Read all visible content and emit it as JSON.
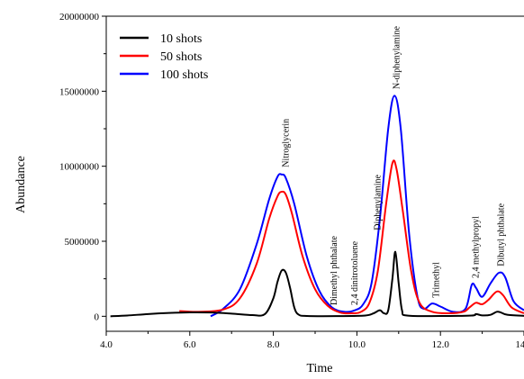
{
  "chart_data": {
    "type": "line",
    "xlabel": "Time",
    "ylabel": "Abundance",
    "xlim": [
      4.0,
      14.0
    ],
    "ylim": [
      -1000000,
      20000000
    ],
    "x_ticks": [
      4.0,
      6.0,
      8.0,
      10.0,
      12.0,
      14.0
    ],
    "x_tick_labels": [
      "4.0",
      "6.0",
      "8.0",
      "10.0",
      "12.0",
      "14.0"
    ],
    "y_ticks": [
      0,
      5000000,
      10000000,
      15000000,
      20000000
    ],
    "y_tick_labels": [
      "0",
      "5000000",
      "10000000",
      "15000000",
      "20000000"
    ],
    "legend_position": "top-left",
    "grid": false,
    "series": [
      {
        "name": "10 shots",
        "color": "#000000",
        "points": [
          [
            4.1,
            0
          ],
          [
            4.5,
            50000
          ],
          [
            5.0,
            150000
          ],
          [
            5.5,
            220000
          ],
          [
            6.0,
            260000
          ],
          [
            6.5,
            250000
          ],
          [
            7.0,
            180000
          ],
          [
            7.5,
            80000
          ],
          [
            7.8,
            150000
          ],
          [
            8.0,
            1200000
          ],
          [
            8.1,
            2300000
          ],
          [
            8.2,
            3050000
          ],
          [
            8.3,
            2900000
          ],
          [
            8.4,
            1900000
          ],
          [
            8.5,
            600000
          ],
          [
            8.6,
            120000
          ],
          [
            8.8,
            20000
          ],
          [
            9.5,
            10000
          ],
          [
            10.2,
            50000
          ],
          [
            10.4,
            200000
          ],
          [
            10.55,
            400000
          ],
          [
            10.65,
            200000
          ],
          [
            10.75,
            400000
          ],
          [
            10.85,
            2500000
          ],
          [
            10.92,
            4300000
          ],
          [
            11.0,
            2200000
          ],
          [
            11.08,
            400000
          ],
          [
            11.2,
            50000
          ],
          [
            12.0,
            20000
          ],
          [
            12.75,
            50000
          ],
          [
            12.85,
            150000
          ],
          [
            13.0,
            60000
          ],
          [
            13.2,
            100000
          ],
          [
            13.35,
            300000
          ],
          [
            13.45,
            250000
          ],
          [
            13.6,
            100000
          ],
          [
            14.0,
            30000
          ]
        ]
      },
      {
        "name": "50 shots",
        "color": "#ff0000",
        "points": [
          [
            5.75,
            350000
          ],
          [
            6.2,
            300000
          ],
          [
            6.8,
            450000
          ],
          [
            7.2,
            1200000
          ],
          [
            7.6,
            3500000
          ],
          [
            7.9,
            6500000
          ],
          [
            8.1,
            8000000
          ],
          [
            8.2,
            8300000
          ],
          [
            8.3,
            8100000
          ],
          [
            8.45,
            6800000
          ],
          [
            8.7,
            4000000
          ],
          [
            9.0,
            1800000
          ],
          [
            9.3,
            700000
          ],
          [
            9.6,
            250000
          ],
          [
            9.9,
            200000
          ],
          [
            10.1,
            300000
          ],
          [
            10.3,
            900000
          ],
          [
            10.5,
            3000000
          ],
          [
            10.7,
            7500000
          ],
          [
            10.85,
            10200000
          ],
          [
            10.95,
            9800000
          ],
          [
            11.1,
            7000000
          ],
          [
            11.3,
            3000000
          ],
          [
            11.5,
            900000
          ],
          [
            11.8,
            300000
          ],
          [
            12.2,
            200000
          ],
          [
            12.55,
            300000
          ],
          [
            12.7,
            600000
          ],
          [
            12.85,
            900000
          ],
          [
            13.0,
            800000
          ],
          [
            13.15,
            1100000
          ],
          [
            13.35,
            1650000
          ],
          [
            13.5,
            1400000
          ],
          [
            13.7,
            600000
          ],
          [
            14.0,
            200000
          ]
        ]
      },
      {
        "name": "100 shots",
        "color": "#0000ff",
        "points": [
          [
            6.5,
            0
          ],
          [
            6.8,
            500000
          ],
          [
            7.2,
            1800000
          ],
          [
            7.6,
            4800000
          ],
          [
            7.9,
            7800000
          ],
          [
            8.1,
            9300000
          ],
          [
            8.2,
            9450000
          ],
          [
            8.3,
            9200000
          ],
          [
            8.5,
            7500000
          ],
          [
            8.8,
            4000000
          ],
          [
            9.1,
            1700000
          ],
          [
            9.4,
            600000
          ],
          [
            9.7,
            300000
          ],
          [
            9.95,
            400000
          ],
          [
            10.15,
            800000
          ],
          [
            10.35,
            2200000
          ],
          [
            10.55,
            6500000
          ],
          [
            10.75,
            12500000
          ],
          [
            10.9,
            14700000
          ],
          [
            11.05,
            12500000
          ],
          [
            11.25,
            5500000
          ],
          [
            11.45,
            1300000
          ],
          [
            11.6,
            500000
          ],
          [
            11.8,
            850000
          ],
          [
            12.0,
            650000
          ],
          [
            12.3,
            300000
          ],
          [
            12.6,
            500000
          ],
          [
            12.75,
            2100000
          ],
          [
            12.85,
            1900000
          ],
          [
            13.0,
            1300000
          ],
          [
            13.2,
            2200000
          ],
          [
            13.4,
            2900000
          ],
          [
            13.55,
            2600000
          ],
          [
            13.75,
            1000000
          ],
          [
            14.0,
            400000
          ]
        ]
      }
    ],
    "annotations": [
      {
        "text": "Nitroglycerin",
        "x": 8.3,
        "y": 9700000
      },
      {
        "text": "Dimethyl phthalate",
        "x": 9.45,
        "y": 500000
      },
      {
        "text": "2,4 dinitrotoluene",
        "x": 9.95,
        "y": 500000
      },
      {
        "text": "Diphenylamine",
        "x": 10.5,
        "y": 5500000
      },
      {
        "text": "N-diphenylamine",
        "x": 10.95,
        "y": 14900000
      },
      {
        "text": "Trimethyl",
        "x": 11.9,
        "y": 1000000
      },
      {
        "text": "2,4 methylpropyl",
        "x": 12.85,
        "y": 2300000
      },
      {
        "text": "Dibutyl phthalate",
        "x": 13.45,
        "y": 3100000
      }
    ]
  }
}
